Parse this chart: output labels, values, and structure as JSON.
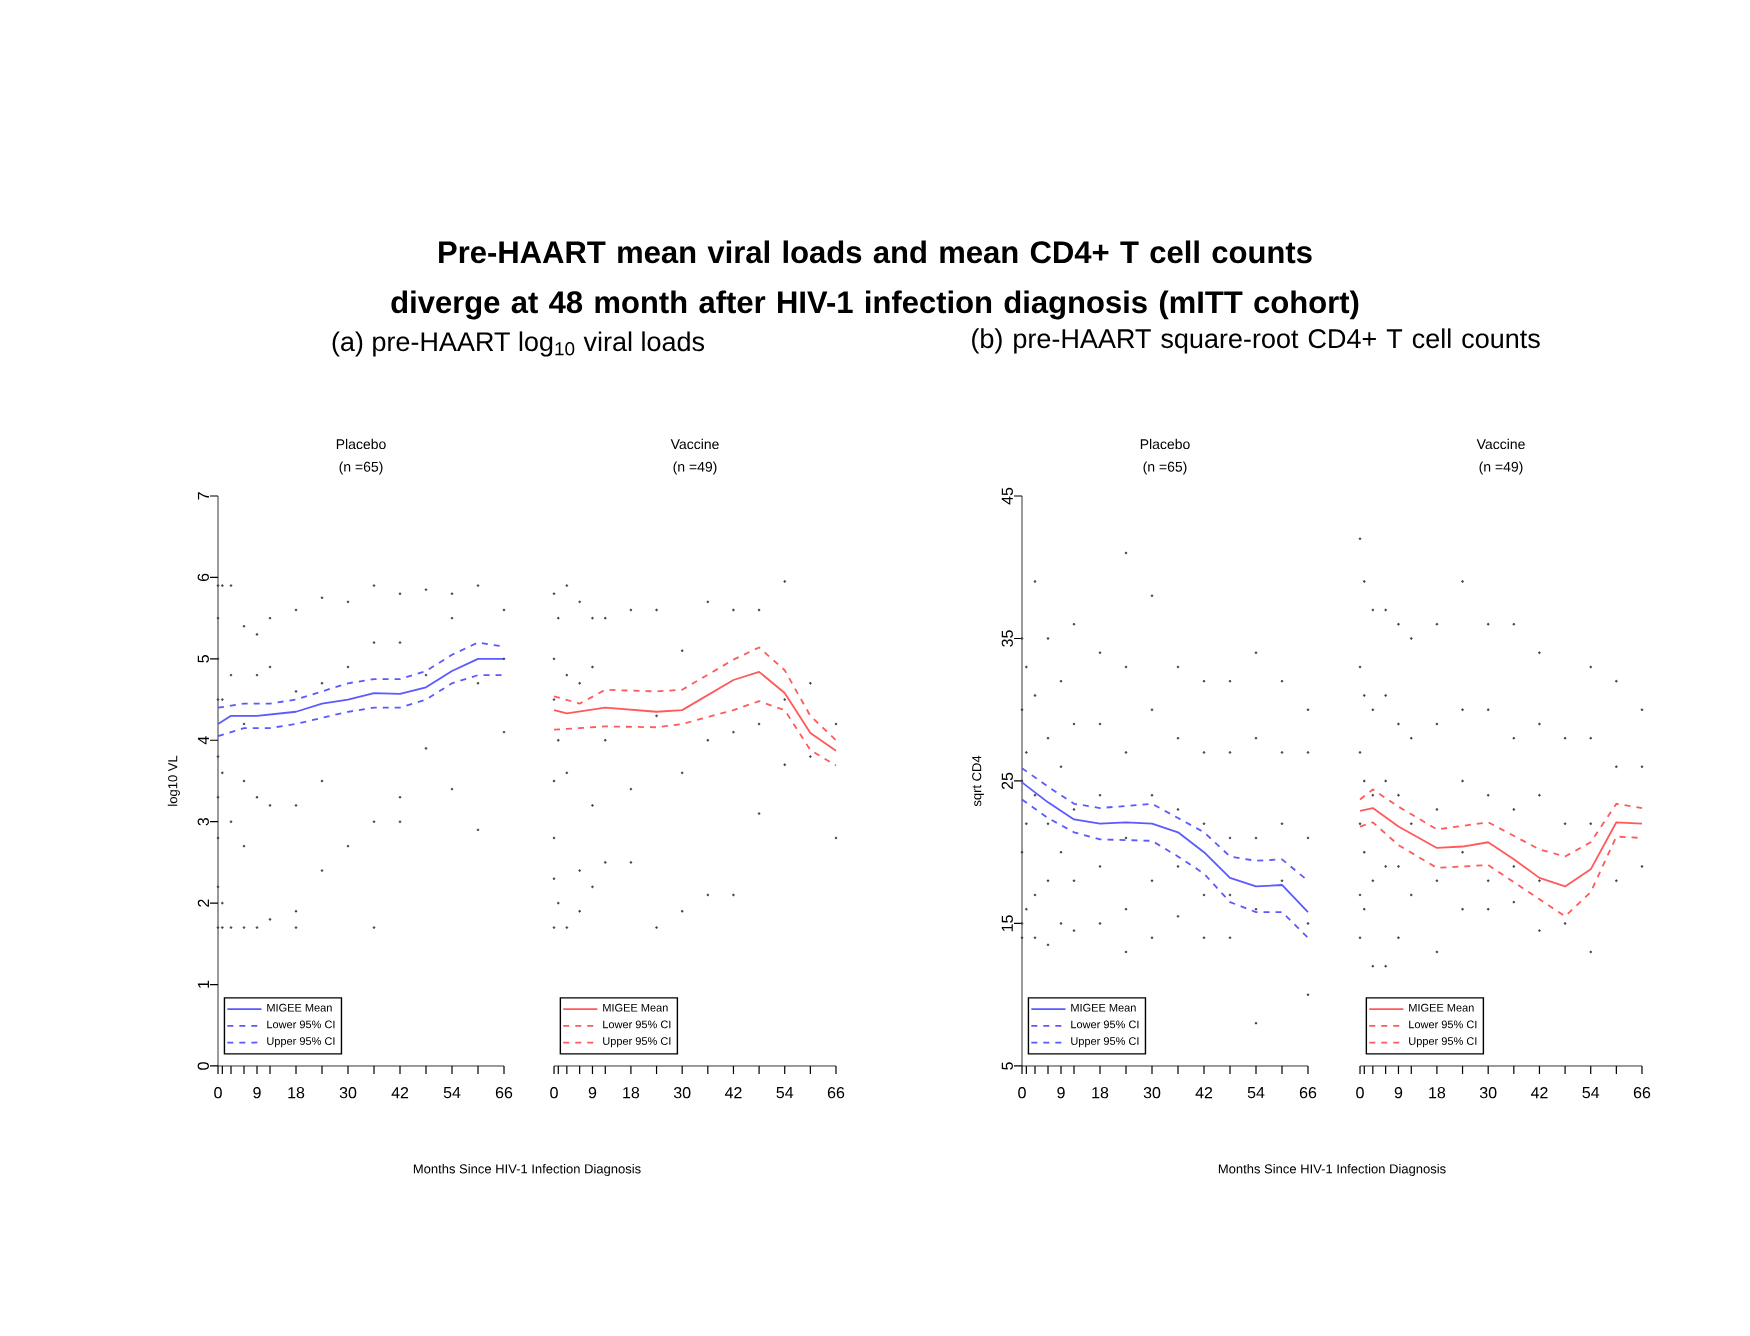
{
  "chart_data": [
    {
      "type": "line",
      "title": "Placebo",
      "subtitle": "(n =65)",
      "xlabel": "Months Since HIV-1 Infection Diagnosis",
      "ylabel": "log10 VL",
      "annotations": [
        "Pre-HAART mean viral loads and mean CD4+ T cell counts diverge at 48 month after HIV-1 infection diagnosis (mITT cohort)",
        "(a) pre-HAART log$_{10}$ viral loads"
      ],
      "xlim": [
        0,
        66
      ],
      "ylim": [
        0,
        7
      ],
      "xticks": [
        0,
        {
          "value": 1,
          "label": null
        },
        {
          "value": 3,
          "label": null
        },
        {
          "value": 6,
          "label": null
        },
        9,
        {
          "value": 12,
          "label": null
        },
        18,
        {
          "value": 24,
          "label": null
        },
        30,
        {
          "value": 36,
          "label": null
        },
        42,
        {
          "value": 48,
          "label": null
        },
        54,
        {
          "value": 60,
          "label": null
        },
        66
      ],
      "yticks": [
        0,
        1,
        2,
        3,
        4,
        5,
        6,
        7
      ],
      "legend": "bottom left",
      "series": [
        {
          "type": "scatter",
          "color": "#404040",
          "x": [
            0,
            0,
            0,
            0,
            0,
            0,
            0,
            0,
            0,
            1,
            1,
            1,
            1,
            1,
            3,
            3,
            3,
            3,
            6,
            6,
            6,
            6,
            6,
            9,
            9,
            9,
            9,
            12,
            12,
            12,
            12,
            18,
            18,
            18,
            18,
            18,
            24,
            24,
            24,
            24,
            30,
            30,
            30,
            36,
            36,
            36,
            36,
            42,
            42,
            42,
            42,
            48,
            48,
            48,
            54,
            54,
            54,
            60,
            60,
            60,
            66,
            66,
            66
          ],
          "values": [
            5.9,
            5.5,
            5.0,
            4.5,
            3.8,
            3.3,
            2.8,
            2.2,
            1.7,
            5.9,
            4.5,
            3.6,
            2.0,
            1.7,
            5.9,
            4.8,
            3.0,
            1.7,
            5.4,
            4.2,
            3.5,
            2.7,
            1.7,
            5.3,
            4.8,
            3.3,
            1.7,
            5.5,
            4.9,
            3.2,
            1.8,
            5.6,
            4.6,
            3.2,
            1.9,
            1.7,
            5.75,
            4.7,
            3.5,
            2.4,
            5.7,
            4.9,
            2.7,
            5.9,
            5.2,
            3.0,
            1.7,
            5.8,
            5.2,
            3.3,
            3.0,
            5.85,
            4.8,
            3.9,
            5.8,
            5.5,
            3.4,
            5.9,
            4.7,
            2.9,
            5.6,
            5.0,
            4.1
          ]
        },
        {
          "name": "MIGEE Mean",
          "color": "#5a5aff",
          "line_style": "solid",
          "x": [
            0,
            3,
            9,
            18,
            24,
            30,
            36,
            42,
            48,
            54,
            60,
            66
          ],
          "values": [
            4.2,
            4.3,
            4.3,
            4.35,
            4.45,
            4.5,
            4.58,
            4.57,
            4.65,
            4.85,
            5.0,
            5.0
          ]
        },
        {
          "name": "Lower 95% CI",
          "color": "#5a5aff",
          "line_style": "dashed",
          "x": [
            0,
            6,
            12,
            18,
            30,
            36,
            42,
            48,
            54,
            60,
            66
          ],
          "values": [
            4.05,
            4.15,
            4.15,
            4.2,
            4.35,
            4.4,
            4.4,
            4.5,
            4.7,
            4.8,
            4.8
          ]
        },
        {
          "name": "Upper 95% CI",
          "color": "#5a5aff",
          "line_style": "dashed",
          "x": [
            0,
            6,
            12,
            18,
            24,
            30,
            36,
            42,
            48,
            54,
            60,
            66
          ],
          "values": [
            4.4,
            4.45,
            4.45,
            4.5,
            4.6,
            4.7,
            4.75,
            4.75,
            4.85,
            5.05,
            5.2,
            5.15
          ]
        }
      ]
    },
    {
      "type": "line",
      "title": "Vaccine",
      "subtitle": "(n =49)",
      "tick_labels": "x",
      "xlim": [
        0,
        66
      ],
      "ylim": [
        0,
        7
      ],
      "xticks": [
        0,
        {
          "value": 1,
          "label": null
        },
        {
          "value": 3,
          "label": null
        },
        {
          "value": 6,
          "label": null
        },
        9,
        {
          "value": 12,
          "label": null
        },
        18,
        {
          "value": 24,
          "label": null
        },
        30,
        {
          "value": 36,
          "label": null
        },
        42,
        {
          "value": 48,
          "label": null
        },
        54,
        {
          "value": 60,
          "label": null
        },
        66
      ],
      "yticks": [
        0,
        1,
        2,
        3,
        4,
        5,
        6,
        7
      ],
      "legend": "bottom left",
      "series": [
        {
          "type": "scatter",
          "color": "#404040",
          "x": [
            0,
            0,
            0,
            0,
            0,
            0,
            0,
            1,
            1,
            1,
            3,
            3,
            3,
            3,
            6,
            6,
            6,
            6,
            9,
            9,
            9,
            9,
            12,
            12,
            12,
            18,
            18,
            18,
            24,
            24,
            24,
            30,
            30,
            30,
            36,
            36,
            36,
            42,
            42,
            42,
            48,
            48,
            48,
            54,
            54,
            54,
            60,
            60,
            66,
            66
          ],
          "values": [
            5.8,
            5.0,
            4.5,
            3.5,
            2.8,
            2.3,
            1.7,
            5.5,
            4.0,
            2.0,
            5.9,
            4.8,
            3.6,
            1.7,
            5.7,
            4.7,
            2.4,
            1.9,
            5.5,
            4.9,
            3.2,
            2.2,
            5.5,
            4.0,
            2.5,
            5.6,
            3.4,
            2.5,
            5.6,
            4.3,
            1.7,
            5.1,
            3.6,
            1.9,
            5.7,
            4.0,
            2.1,
            5.6,
            4.1,
            2.1,
            5.6,
            4.2,
            3.1,
            5.95,
            4.5,
            3.7,
            4.7,
            3.8,
            4.2,
            2.8
          ]
        },
        {
          "name": "MIGEE Mean",
          "color": "#ff5a5a",
          "line_style": "solid",
          "x": [
            0,
            3,
            12,
            24,
            30,
            42,
            48,
            54,
            60,
            66
          ],
          "values": [
            4.37,
            4.33,
            4.4,
            4.35,
            4.37,
            4.74,
            4.84,
            4.58,
            4.09,
            3.87
          ]
        },
        {
          "name": "Lower 95% CI",
          "color": "#ff5a5a",
          "line_style": "dashed",
          "x": [
            0,
            12,
            24,
            30,
            42,
            48,
            54,
            60,
            66
          ],
          "values": [
            4.13,
            4.17,
            4.16,
            4.2,
            4.37,
            4.48,
            4.37,
            3.88,
            3.69
          ]
        },
        {
          "name": "Upper 95% CI",
          "color": "#ff5a5a",
          "line_style": "dashed",
          "x": [
            0,
            6,
            12,
            24,
            30,
            42,
            48,
            54,
            60,
            66
          ],
          "values": [
            4.54,
            4.45,
            4.62,
            4.6,
            4.62,
            4.99,
            5.14,
            4.86,
            4.3,
            4.0
          ]
        }
      ]
    },
    {
      "type": "line",
      "title": "Placebo",
      "subtitle": "(n =65)",
      "xlabel": "Months Since HIV-1 Infection Diagnosis",
      "ylabel": "sqrt CD4",
      "annotations": [
        "(b) pre-HAART square-root CD4+ T cell counts"
      ],
      "xlim": [
        0,
        66
      ],
      "ylim": [
        5,
        45
      ],
      "xticks": [
        0,
        {
          "value": 1,
          "label": null
        },
        {
          "value": 3,
          "label": null
        },
        {
          "value": 6,
          "label": null
        },
        9,
        {
          "value": 12,
          "label": null
        },
        18,
        {
          "value": 24,
          "label": null
        },
        30,
        {
          "value": 36,
          "label": null
        },
        42,
        {
          "value": 48,
          "label": null
        },
        54,
        {
          "value": 60,
          "label": null
        },
        66
      ],
      "yticks": [
        5,
        15,
        25,
        35,
        45
      ],
      "legend": "bottom left",
      "series": [
        {
          "type": "scatter",
          "color": "#404040",
          "x": [
            0,
            0,
            0,
            0,
            0,
            0,
            1,
            1,
            1,
            1,
            3,
            3,
            3,
            3,
            3,
            6,
            6,
            6,
            6,
            6,
            9,
            9,
            9,
            9,
            12,
            12,
            12,
            12,
            12,
            18,
            18,
            18,
            18,
            18,
            24,
            24,
            24,
            24,
            24,
            24,
            30,
            30,
            30,
            30,
            30,
            36,
            36,
            36,
            36,
            36,
            42,
            42,
            42,
            42,
            42,
            48,
            48,
            48,
            48,
            48,
            54,
            54,
            54,
            54,
            54,
            60,
            60,
            60,
            60,
            66,
            66,
            66,
            66,
            66
          ],
          "values": [
            35,
            30,
            25,
            20,
            15,
            14,
            33,
            27,
            22,
            16,
            39,
            31,
            24,
            17,
            14,
            35,
            28,
            22,
            18,
            13.5,
            32,
            26,
            20,
            15,
            36,
            29,
            23,
            18,
            14.5,
            34,
            29,
            24,
            19,
            15,
            41,
            33,
            27,
            21,
            16,
            13,
            38,
            30,
            24,
            18,
            14,
            33,
            28,
            23,
            19,
            15.5,
            32,
            27,
            22,
            17,
            14,
            32,
            27,
            21,
            17,
            14,
            34,
            28,
            21,
            16,
            8,
            32,
            27,
            22,
            18,
            30,
            27,
            21,
            15,
            10
          ]
        },
        {
          "name": "MIGEE Mean",
          "color": "#5a5aff",
          "line_style": "solid",
          "x": [
            0,
            6,
            12,
            18,
            24,
            30,
            36,
            42,
            48,
            54,
            60,
            66
          ],
          "values": [
            24.9,
            23.5,
            22.3,
            22.0,
            22.1,
            22.0,
            21.4,
            20.0,
            18.2,
            17.6,
            17.7,
            15.8
          ]
        },
        {
          "name": "Lower 95% CI",
          "color": "#5a5aff",
          "line_style": "dashed",
          "x": [
            0,
            6,
            12,
            18,
            30,
            36,
            42,
            48,
            54,
            60,
            66
          ],
          "values": [
            23.7,
            22.4,
            21.4,
            20.9,
            20.8,
            19.7,
            18.5,
            16.5,
            15.8,
            15.8,
            14.0
          ]
        },
        {
          "name": "Upper 95% CI",
          "color": "#5a5aff",
          "line_style": "dashed",
          "x": [
            0,
            6,
            12,
            18,
            30,
            36,
            42,
            48,
            54,
            60,
            66
          ],
          "values": [
            25.9,
            24.6,
            23.4,
            23.1,
            23.4,
            22.4,
            21.4,
            19.7,
            19.4,
            19.5,
            18.0
          ]
        }
      ]
    },
    {
      "type": "line",
      "title": "Vaccine",
      "subtitle": "(n =49)",
      "tick_labels": "x",
      "xlim": [
        0,
        66
      ],
      "ylim": [
        5,
        45
      ],
      "xticks": [
        0,
        {
          "value": 1,
          "label": null
        },
        {
          "value": 3,
          "label": null
        },
        {
          "value": 6,
          "label": null
        },
        9,
        {
          "value": 12,
          "label": null
        },
        18,
        {
          "value": 24,
          "label": null
        },
        30,
        {
          "value": 36,
          "label": null
        },
        42,
        {
          "value": 48,
          "label": null
        },
        54,
        {
          "value": 60,
          "label": null
        },
        66
      ],
      "yticks": [
        5,
        15,
        25,
        35,
        45
      ],
      "legend": "bottom left",
      "series": [
        {
          "type": "scatter",
          "color": "#404040",
          "x": [
            0,
            0,
            0,
            0,
            0,
            0,
            1,
            1,
            1,
            1,
            1,
            3,
            3,
            3,
            3,
            3,
            6,
            6,
            6,
            6,
            6,
            9,
            9,
            9,
            9,
            9,
            12,
            12,
            12,
            12,
            18,
            18,
            18,
            18,
            18,
            24,
            24,
            24,
            24,
            24,
            30,
            30,
            30,
            30,
            30,
            36,
            36,
            36,
            36,
            36,
            42,
            42,
            42,
            42,
            42,
            48,
            48,
            48,
            54,
            54,
            54,
            54,
            60,
            60,
            60,
            66,
            66,
            66
          ],
          "values": [
            42,
            33,
            27,
            22,
            17,
            14,
            39,
            31,
            25,
            20,
            16,
            37,
            30,
            24,
            18,
            12,
            37,
            31,
            25,
            19,
            12,
            36,
            29,
            24,
            19,
            14,
            35,
            28,
            22,
            17,
            36,
            29,
            23,
            18,
            13,
            39,
            30,
            25,
            20,
            16,
            36,
            30,
            24,
            18,
            16,
            36,
            28,
            23,
            19,
            16.5,
            34,
            29,
            24,
            18,
            14.5,
            28,
            22,
            15,
            33,
            28,
            22,
            13,
            32,
            26,
            18,
            30,
            26,
            19
          ]
        },
        {
          "name": "MIGEE Mean",
          "color": "#ff5a5a",
          "line_style": "solid",
          "x": [
            0,
            3,
            9,
            18,
            24,
            30,
            36,
            42,
            48,
            54,
            60,
            66
          ],
          "values": [
            22.9,
            23.1,
            21.8,
            20.3,
            20.4,
            20.7,
            19.5,
            18.2,
            17.6,
            18.8,
            22.1,
            22.0
          ]
        },
        {
          "name": "Lower 95% CI",
          "color": "#ff5a5a",
          "line_style": "dashed",
          "x": [
            0,
            3,
            9,
            18,
            30,
            42,
            48,
            54,
            60,
            66
          ],
          "values": [
            21.8,
            22.1,
            20.5,
            18.9,
            19.1,
            16.7,
            15.5,
            17.2,
            21.1,
            21.0
          ]
        },
        {
          "name": "Upper 95% CI",
          "color": "#ff5a5a",
          "line_style": "dashed",
          "x": [
            0,
            3,
            9,
            18,
            30,
            42,
            48,
            54,
            60,
            66
          ],
          "values": [
            23.7,
            24.4,
            23.2,
            21.6,
            22.1,
            20.2,
            19.7,
            20.7,
            23.4,
            23.1
          ]
        }
      ]
    }
  ]
}
